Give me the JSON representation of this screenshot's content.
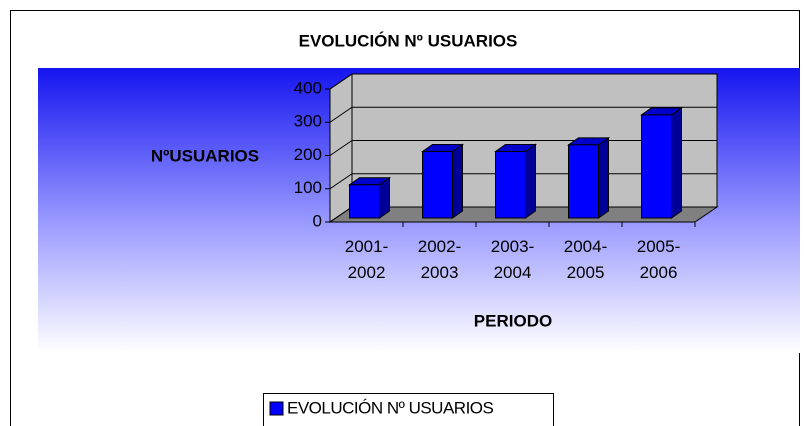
{
  "chart_data": {
    "type": "bar3d",
    "title": "EVOLUCIÓN Nº USUARIOS",
    "x_label": "PERIODO",
    "y_label": "NºUSUARIOS",
    "categories": [
      "2001-2002",
      "2002-2003",
      "2003-2004",
      "2004-2005",
      "2005-2006"
    ],
    "series": [
      {
        "name": "EVOLUCIÓN Nº USUARIOS",
        "color": "#0000ff",
        "values": [
          100,
          200,
          200,
          220,
          310
        ]
      }
    ],
    "ylim": [
      0,
      400
    ],
    "yticks": [
      0,
      100,
      200,
      300,
      400
    ],
    "grid": true,
    "legend": "bottom"
  }
}
